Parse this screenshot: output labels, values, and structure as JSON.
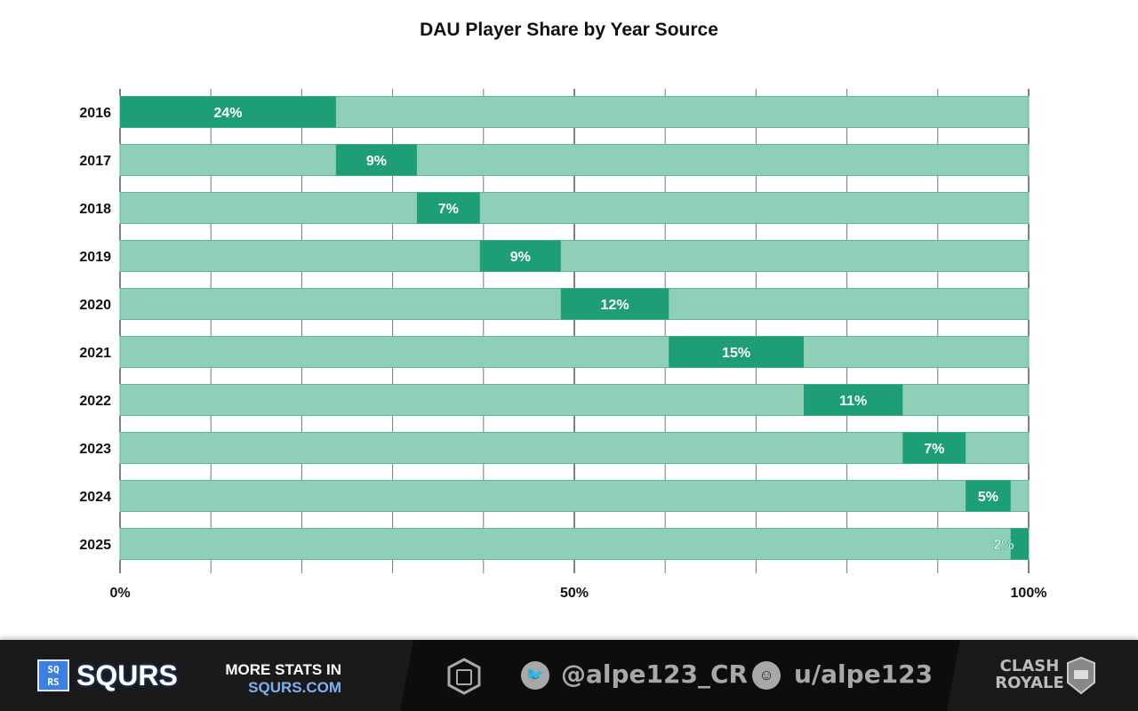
{
  "chart_data": {
    "type": "bar",
    "orientation": "horizontal-stacked-floating",
    "title": "DAU Player Share by Year Source",
    "categories": [
      "2016",
      "2017",
      "2018",
      "2019",
      "2020",
      "2021",
      "2022",
      "2023",
      "2024",
      "2025"
    ],
    "values": [
      24,
      9,
      7,
      9,
      12,
      15,
      11,
      7,
      5,
      2
    ],
    "labels": [
      "24%",
      "9%",
      "7%",
      "9%",
      "12%",
      "15%",
      "11%",
      "7%",
      "5%",
      "2%"
    ],
    "xlim": [
      0,
      100
    ],
    "xticks": [
      "0%",
      "50%",
      "100%"
    ],
    "grid": true,
    "colors": {
      "segment": "#1d9e77",
      "track": "#8fcfb8"
    }
  },
  "footer": {
    "logo_box": [
      "SQ",
      "RS"
    ],
    "brand": "SQURS",
    "more_stats": "MORE STATS IN",
    "site": "SQURS.COM",
    "twitter": "@alpe123_CR",
    "reddit": "u/alpe123",
    "game_logo": "CLASH ROYALE",
    "icons": [
      "squrs-logo-icon",
      "twitter-icon",
      "reddit-icon",
      "clash-royale-logo"
    ]
  }
}
